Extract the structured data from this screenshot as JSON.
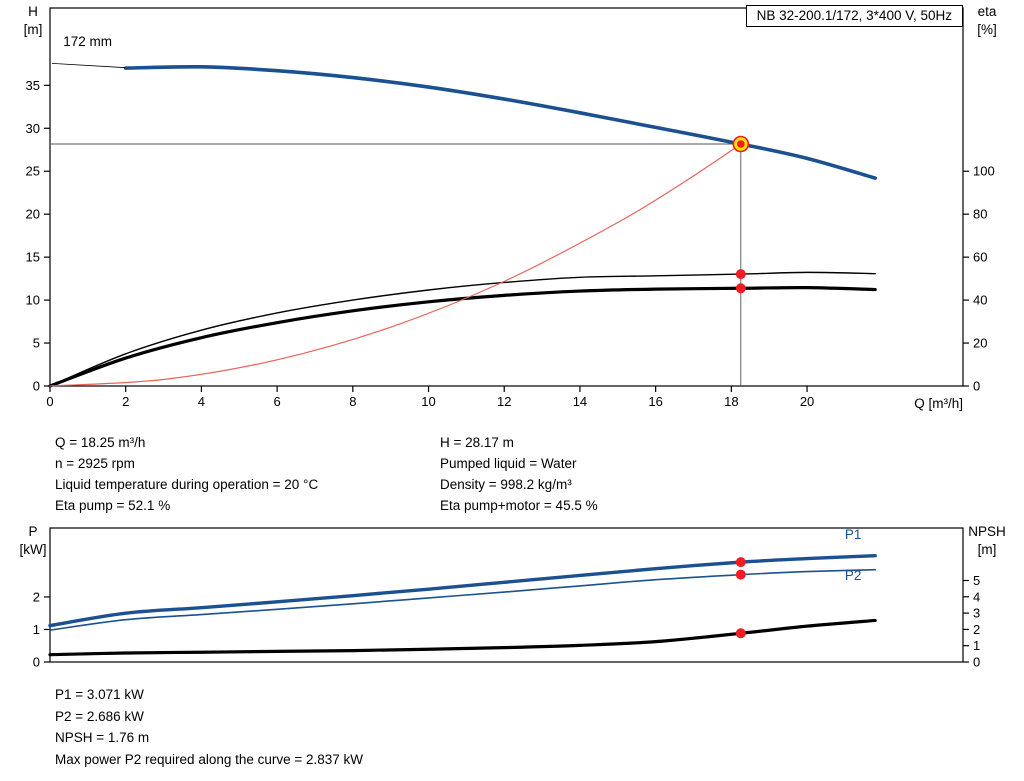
{
  "title_box": {
    "text": "NB 32-200.1/172, 3*400 V, 50Hz"
  },
  "colors": {
    "curve_blue": "#1b5190",
    "curve_red": "#e8635a",
    "dot_red": "#ee1c25",
    "duty_yellow": "#ffe000",
    "guide_gray": "#555555",
    "axis_black": "#000000"
  },
  "info_top": {
    "left": [
      "Q = 18.25 m³/h",
      "n = 2925 rpm",
      "Liquid temperature during operation = 20 °C",
      "Eta pump = 52.1 %"
    ],
    "right": [
      "H = 28.17 m",
      "Pumped liquid = Water",
      "Density = 998.2 kg/m³",
      "Eta pump+motor = 45.5 %"
    ]
  },
  "info_bottom": {
    "lines": [
      "P1 = 3.071 kW",
      "P2 = 2.686 kW",
      "NPSH = 1.76 m",
      "Max power P2 required along the curve = 2.837 kW"
    ]
  },
  "chart_data": [
    {
      "type": "line",
      "name": "pump-performance-chart",
      "x": {
        "label": "Q [m³/h]",
        "range": [
          0,
          24.12
        ],
        "ticks": [
          0,
          2,
          4,
          6,
          8,
          10,
          12,
          14,
          16,
          18,
          20
        ]
      },
      "y_left": {
        "label": [
          "H",
          "[m]"
        ],
        "range": [
          0,
          44
        ],
        "ticks": [
          0,
          5,
          10,
          15,
          20,
          25,
          30,
          35
        ]
      },
      "y_right": {
        "label": [
          "eta",
          "[%]"
        ],
        "range": [
          0,
          176
        ],
        "ticks": [
          0,
          20,
          40,
          60,
          80,
          100
        ]
      },
      "grid": false,
      "series": [
        {
          "name": "eta-pump-curve",
          "axis": "right",
          "color": "#000000",
          "width": 1.4,
          "x": [
            0,
            2,
            4,
            6,
            8,
            10,
            12,
            14,
            16,
            18.25,
            20,
            21.8
          ],
          "y": [
            0,
            15,
            26,
            34,
            40,
            44.7,
            48.2,
            50.6,
            51.3,
            52.1,
            52.9,
            52.3
          ]
        },
        {
          "name": "eta-pump-motor-curve",
          "axis": "right",
          "color": "#000000",
          "width": 3.2,
          "x": [
            0,
            2,
            4,
            6,
            8,
            10,
            12,
            14,
            16,
            18.25,
            20,
            21.8
          ],
          "y": [
            0,
            13,
            22.5,
            29.5,
            35,
            39.2,
            42.2,
            44.2,
            45.1,
            45.5,
            45.8,
            44.9
          ]
        },
        {
          "name": "system-curve",
          "axis": "left",
          "color": "#e8635a",
          "width": 1.2,
          "x": [
            0,
            3,
            6,
            9,
            12,
            15,
            16.8,
            18.25
          ],
          "y": [
            0,
            0.76,
            3.05,
            6.85,
            12.18,
            19.03,
            23.88,
            28.17
          ]
        },
        {
          "name": "head-curve",
          "axis": "left",
          "color": "#1b5190",
          "width": 3.6,
          "x": [
            2,
            4,
            6,
            8,
            10,
            12,
            14,
            16,
            18.25,
            20,
            21.8
          ],
          "y": [
            37.0,
            37.15,
            36.7,
            35.9,
            34.8,
            33.4,
            31.8,
            30.1,
            28.17,
            26.5,
            24.2
          ]
        }
      ],
      "guides": [
        {
          "type": "h",
          "axis": "left",
          "y": 28.17,
          "x1": 0,
          "x2": 18.25
        },
        {
          "type": "v",
          "axis": "left",
          "x": 18.25,
          "y1": 0,
          "y2": 28.17
        }
      ],
      "markers": [
        {
          "style": "duty",
          "axis": "left",
          "x": 18.25,
          "y": 28.17,
          "name": "duty-point-marker"
        },
        {
          "style": "dot",
          "axis": "right",
          "x": 18.25,
          "y": 52.1,
          "name": "eta-pump-duty-dot"
        },
        {
          "style": "dot",
          "axis": "right",
          "x": 18.25,
          "y": 45.5,
          "name": "eta-pump-motor-duty-dot"
        }
      ],
      "annotations": [
        {
          "type": "text",
          "text": "172 mm",
          "axis": "left",
          "x": 0.35,
          "y": 39.6,
          "anchor": "start",
          "color": "#000000",
          "name": "impeller-diameter-label"
        },
        {
          "type": "line",
          "axis": "left",
          "x1": 0.05,
          "y1": 37.55,
          "x2": 2.0,
          "y2": 37.05
        }
      ]
    },
    {
      "type": "line",
      "name": "power-npsh-chart",
      "x": {
        "label": "",
        "range": [
          0,
          24.12
        ],
        "ticks": []
      },
      "y_left": {
        "label": [
          "P",
          "[kW]"
        ],
        "range": [
          0,
          4.12
        ],
        "ticks": [
          0,
          1,
          2
        ]
      },
      "y_right": {
        "label": [
          "NPSH",
          "[m]"
        ],
        "range": [
          0,
          8.22
        ],
        "ticks": [
          0,
          1,
          2,
          3,
          4,
          5
        ]
      },
      "grid": false,
      "series": [
        {
          "name": "npsh-curve",
          "axis": "right",
          "color": "#000000",
          "width": 3.2,
          "x": [
            0,
            2,
            4,
            6,
            8,
            10,
            12,
            14,
            16,
            18.25,
            20,
            21.8
          ],
          "y": [
            0.45,
            0.55,
            0.6,
            0.65,
            0.7,
            0.78,
            0.88,
            1.02,
            1.25,
            1.76,
            2.2,
            2.55
          ]
        },
        {
          "name": "p2-curve",
          "axis": "left",
          "color": "#1b5190",
          "width": 1.6,
          "x": [
            0,
            2,
            4,
            6,
            8,
            10,
            12,
            14,
            16,
            18.25,
            20,
            21.8
          ],
          "y": [
            0.98,
            1.3,
            1.46,
            1.62,
            1.79,
            1.97,
            2.15,
            2.34,
            2.53,
            2.686,
            2.78,
            2.837
          ]
        },
        {
          "name": "p1-curve",
          "axis": "left",
          "color": "#1b5190",
          "width": 3.4,
          "x": [
            0,
            2,
            4,
            6,
            8,
            10,
            12,
            14,
            16,
            18.25,
            20,
            21.8
          ],
          "y": [
            1.12,
            1.5,
            1.67,
            1.85,
            2.04,
            2.24,
            2.45,
            2.66,
            2.87,
            3.071,
            3.18,
            3.27
          ]
        }
      ],
      "guides": [],
      "markers": [
        {
          "style": "dot",
          "axis": "left",
          "x": 18.25,
          "y": 3.071,
          "name": "p1-duty-dot"
        },
        {
          "style": "dot",
          "axis": "left",
          "x": 18.25,
          "y": 2.686,
          "name": "p2-duty-dot"
        },
        {
          "style": "dot",
          "axis": "right",
          "x": 18.25,
          "y": 1.76,
          "name": "npsh-duty-dot"
        }
      ],
      "annotations": [
        {
          "type": "text",
          "text": "P1",
          "axis": "left",
          "x": 21.0,
          "y": 3.78,
          "anchor": "start",
          "color": "#1b5190",
          "name": "p1-curve-label"
        },
        {
          "type": "text",
          "text": "P2",
          "axis": "left",
          "x": 21.0,
          "y": 2.52,
          "anchor": "start",
          "color": "#1b5190",
          "name": "p2-curve-label"
        }
      ]
    }
  ]
}
